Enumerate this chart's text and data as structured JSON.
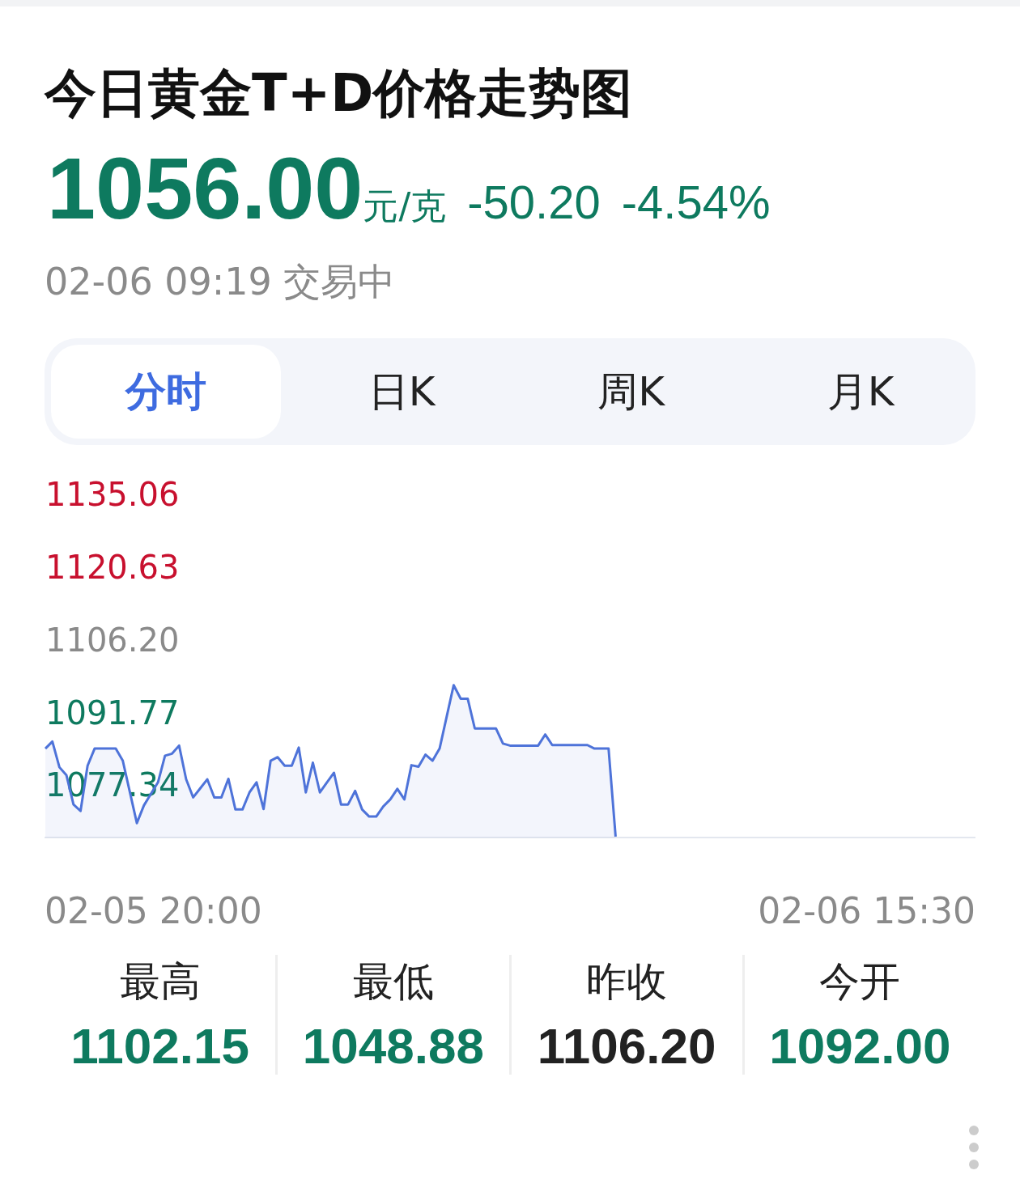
{
  "chart_data": {
    "type": "area",
    "title": "今日黄金T+D价格走势图",
    "annotations": [
      "1056.00",
      "元/克",
      "-50.20",
      "-4.54%",
      "02-06 09:19 交易中",
      "分时",
      "日K",
      "周K",
      "月K",
      "最高",
      "1102.15",
      "最低",
      "1048.88",
      "昨收",
      "1106.20",
      "今开",
      "1092.00",
      "02-05 20:00",
      "02-06 15:30"
    ],
    "categories": [
      null,
      null,
      null,
      null,
      null,
      null,
      null,
      null,
      null,
      null,
      null,
      null,
      null,
      null,
      null,
      null,
      null,
      null,
      null,
      null,
      null,
      null,
      null,
      null,
      null,
      null,
      null,
      null,
      null,
      null,
      null,
      null,
      null,
      null,
      null,
      null,
      null,
      null,
      null,
      null,
      null,
      null,
      null,
      null,
      null,
      null,
      null,
      null,
      null,
      null,
      null,
      null,
      null,
      null,
      null,
      null,
      null,
      null,
      null,
      null,
      null,
      null,
      null,
      null,
      null,
      null,
      null,
      null,
      null,
      null,
      null,
      null,
      null,
      null,
      null,
      null,
      null,
      null,
      null,
      null,
      null,
      null,
      null,
      null,
      null,
      null,
      null,
      null,
      null,
      null,
      null,
      null,
      null,
      null,
      null,
      null,
      null,
      null,
      null,
      null,
      null,
      null,
      null,
      null,
      null,
      null,
      null,
      null,
      null,
      null,
      null,
      null,
      null,
      null,
      null,
      null,
      null,
      null,
      null,
      null,
      null,
      null,
      null,
      null,
      null,
      null,
      null,
      null,
      null,
      null,
      null,
      null,
      null
    ],
    "series": [
      {
        "color": "#4e73d9",
        "values": [
          1085.2,
          1086.6,
          1081.5,
          1079.9,
          1074.1,
          1072.8,
          1081.8,
          1085.2,
          1085.2,
          1085.2,
          1085.2,
          1082.8,
          1076.6,
          1070.4,
          1073.9,
          1076.2,
          1078.5,
          1083.8,
          1084.2,
          1085.8,
          1079.1,
          1075.5,
          1077.3,
          1079.1,
          1075.5,
          1075.5,
          1079.2,
          1073.1,
          1073.1,
          1076.5,
          1078.5,
          1073.2,
          1082.8,
          1083.5,
          1081.8,
          1081.8,
          1085.4,
          1076.5,
          1082.4,
          1076.5,
          1078.5,
          1080.4,
          1074.1,
          1074.1,
          1076.8,
          1073.1,
          1071.7,
          1071.7,
          1073.7,
          1075.1,
          1077.2,
          1075.1,
          1081.9,
          1081.6,
          1084.0,
          1082.8,
          1085.2,
          1091.5,
          1097.8,
          1095.1,
          1095.1,
          1089.2,
          1089.2,
          1089.2,
          1089.2,
          1086.2,
          1085.8,
          1085.8,
          1085.8,
          1085.8,
          1085.8,
          1088.0,
          1085.9,
          1085.9,
          1085.9,
          1085.9,
          1085.9,
          1085.9,
          1085.2,
          1085.2,
          1085.2,
          1067.7,
          null,
          null,
          null,
          null,
          null,
          null,
          null,
          null,
          null,
          null,
          null,
          null,
          null,
          null,
          null,
          null,
          null,
          null,
          null,
          null,
          null,
          null,
          null,
          null,
          null,
          null,
          null,
          null,
          null,
          null,
          null,
          null,
          null,
          null,
          null,
          null,
          null,
          null,
          null,
          null,
          null,
          null,
          null,
          null,
          null,
          null,
          null,
          null,
          null,
          null,
          null
        ]
      }
    ],
    "ylim": [
      1067.5,
      1135.06
    ],
    "yticks": [
      1077.34,
      1091.77,
      {
        "value": 1106.2,
        "label": "1106.20"
      },
      1120.63,
      1135.06
    ],
    "grid": false,
    "legend": false,
    "marker": "none",
    "line_style": "solid"
  }
}
